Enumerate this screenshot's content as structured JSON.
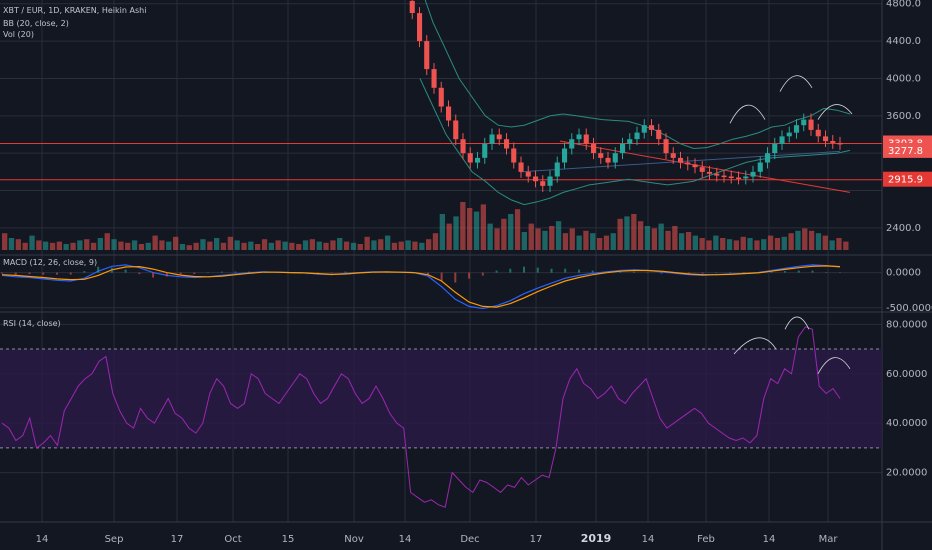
{
  "header": {
    "title": "XBT / EUR, 1D, KRAKEN, Heikin Ashi",
    "bb_label": "BB (20, close, 2)",
    "vol_label": "Vol (20)"
  },
  "macd_panel": {
    "label": "MACD (12, 26, close, 9)"
  },
  "rsi_panel": {
    "label": "RSI (14, close)"
  },
  "colors": {
    "background": "#131722",
    "up": "#26a69a",
    "down": "#ef5350",
    "rsi_line": "#9c27b0",
    "rsi_band": "#2a1a45",
    "bollinger": "#2b8b80",
    "grid": "#2a2e39",
    "price_line": "#e53935"
  },
  "chart_data": [
    {
      "type": "candlestick",
      "title": "XBT / EUR, 1D, KRAKEN, Heikin Ashi",
      "ylim": [
        2110,
        4840
      ],
      "y_ticks": [
        2400.0,
        2800.0,
        3200.0,
        3600.0,
        4000.0,
        4400.0,
        4800.0
      ],
      "y_tick_labels": [
        "2400.0",
        "",
        "",
        "3600.0",
        "4000.0",
        "4400.0",
        "4800.0"
      ],
      "x_ticks": [
        "14",
        "Sep",
        "17",
        "Oct",
        "15",
        "Nov",
        "14",
        "Dec",
        "17",
        "2019",
        "14",
        "Feb",
        "14",
        "Mar"
      ],
      "price_labels": [
        {
          "value": 3303.8,
          "text": "3303.8",
          "color": "#ef5350"
        },
        {
          "value": 3277.8,
          "text": "3277.8",
          "color": "#ef5350"
        },
        {
          "value": 2915.9,
          "text": "2915.9",
          "color": "#e53935"
        }
      ],
      "horizontal_lines": [
        3303.8,
        2915.9
      ],
      "candle_path": [
        4830,
        4700,
        4400,
        4100,
        3900,
        3700,
        3550,
        3350,
        3200,
        3100,
        3150,
        3300,
        3400,
        3350,
        3250,
        3100,
        3000,
        2950,
        2900,
        2850,
        2950,
        3100,
        3250,
        3350,
        3400,
        3300,
        3200,
        3150,
        3100,
        3200,
        3300,
        3350,
        3420,
        3500,
        3450,
        3350,
        3200,
        3150,
        3100,
        3080,
        3050,
        3000,
        2980,
        2960,
        2950,
        2940,
        2930,
        2950,
        3000,
        3100,
        3200,
        3300,
        3380,
        3420,
        3500,
        3560,
        3450,
        3380,
        3330,
        3310,
        3300
      ],
      "bollinger_upper": [
        5000,
        4600,
        4300,
        4000,
        3800,
        3600,
        3500,
        3480,
        3500,
        3550,
        3600,
        3620,
        3600,
        3580,
        3560,
        3550,
        3540,
        3500,
        3450,
        3380,
        3300,
        3250,
        3260,
        3300,
        3350,
        3380,
        3420,
        3480,
        3500,
        3560,
        3600,
        3680,
        3660,
        3620
      ],
      "bollinger_lower": [
        4000,
        3700,
        3400,
        3200,
        3000,
        2900,
        2780,
        2700,
        2650,
        2680,
        2720,
        2780,
        2820,
        2860,
        2880,
        2900,
        2920,
        2900,
        2880,
        2860,
        2880,
        2900,
        2950,
        3000,
        3050,
        3100,
        3130,
        3150,
        3160,
        3170,
        3180,
        3190,
        3200,
        3230
      ],
      "annotation_arcs": [
        {
          "from": 3520,
          "peak": 3760,
          "to": 3560
        },
        {
          "from": 3860,
          "peak": 4050,
          "to": 3900
        },
        {
          "from": 3560,
          "peak": 3720,
          "to": 3620
        }
      ]
    },
    {
      "type": "bar",
      "title": "Vol (20)",
      "values": [
        14,
        10,
        9,
        6,
        12,
        8,
        7,
        6,
        7,
        5,
        6,
        8,
        9,
        6,
        10,
        14,
        9,
        7,
        6,
        8,
        5,
        6,
        12,
        8,
        7,
        11,
        5,
        4,
        6,
        9,
        7,
        10,
        6,
        11,
        8,
        6,
        7,
        5,
        9,
        6,
        8,
        7,
        6,
        5,
        8,
        9,
        7,
        6,
        8,
        10,
        7,
        6,
        5,
        11,
        8,
        9,
        12,
        6,
        7,
        8,
        7,
        6,
        9,
        14,
        30,
        22,
        28,
        40,
        35,
        32,
        38,
        22,
        18,
        26,
        30,
        34,
        15,
        22,
        18,
        16,
        20,
        24,
        14,
        18,
        12,
        16,
        14,
        10,
        12,
        14,
        26,
        28,
        30,
        24,
        20,
        18,
        22,
        16,
        20,
        14,
        15,
        12,
        10,
        8,
        12,
        10,
        9,
        8,
        11,
        10,
        8,
        9,
        12,
        10,
        11,
        14,
        16,
        18,
        16,
        14,
        12,
        8,
        10,
        7
      ]
    },
    {
      "type": "line",
      "title": "MACD (12, 26, close, 9)",
      "ylim": [
        -560,
        250
      ],
      "y_ticks": [
        0.0,
        -500.0
      ],
      "y_tick_labels": [
        "0.0000",
        "-500.0000"
      ],
      "series": [
        {
          "name": "MACD",
          "color": "#2962ff",
          "values": [
            -40,
            -60,
            -70,
            -90,
            -110,
            -120,
            -80,
            20,
            90,
            110,
            70,
            0,
            -40,
            -60,
            -70,
            -60,
            -40,
            -20,
            0,
            10,
            5,
            0,
            -5,
            -20,
            -30,
            -10,
            0,
            10,
            10,
            5,
            0,
            -50,
            -200,
            -380,
            -480,
            -510,
            -470,
            -400,
            -300,
            -220,
            -150,
            -80,
            -40,
            -10,
            10,
            30,
            40,
            30,
            10,
            -10,
            -30,
            -40,
            -30,
            -20,
            -10,
            0,
            30,
            60,
            90,
            110,
            100,
            80
          ]
        },
        {
          "name": "Signal",
          "color": "#ff9800",
          "values": [
            -30,
            -40,
            -55,
            -70,
            -90,
            -100,
            -95,
            -40,
            40,
            80,
            85,
            50,
            0,
            -35,
            -55,
            -60,
            -50,
            -30,
            -10,
            5,
            5,
            0,
            -5,
            -15,
            -25,
            -20,
            -5,
            5,
            8,
            5,
            0,
            -30,
            -120,
            -280,
            -420,
            -480,
            -490,
            -440,
            -360,
            -270,
            -190,
            -120,
            -70,
            -30,
            0,
            20,
            30,
            30,
            20,
            0,
            -20,
            -30,
            -30,
            -25,
            -15,
            -5,
            20,
            45,
            70,
            90,
            95,
            85
          ]
        }
      ]
    },
    {
      "type": "line",
      "title": "RSI (14, close)",
      "ylim": [
        0,
        85
      ],
      "y_ticks": [
        80.0,
        60.0,
        40.0,
        20.0
      ],
      "y_tick_labels": [
        "80.0000",
        "60.0000",
        "40.0000",
        "20.0000"
      ],
      "band": [
        30,
        70
      ],
      "series": [
        {
          "name": "RSI",
          "color": "#9c27b0",
          "values": [
            40,
            38,
            33,
            35,
            42,
            30,
            32,
            35,
            31,
            45,
            50,
            55,
            58,
            60,
            65,
            67,
            52,
            45,
            40,
            38,
            46,
            42,
            40,
            45,
            50,
            44,
            42,
            38,
            36,
            40,
            52,
            58,
            55,
            48,
            46,
            48,
            60,
            58,
            52,
            50,
            48,
            52,
            56,
            60,
            58,
            52,
            48,
            50,
            55,
            60,
            58,
            52,
            48,
            50,
            55,
            50,
            44,
            40,
            38,
            12,
            10,
            8,
            9,
            7,
            6,
            20,
            17,
            14,
            12,
            17,
            16,
            14,
            12,
            15,
            14,
            18,
            15,
            17,
            19,
            18,
            30,
            50,
            58,
            62,
            56,
            54,
            50,
            52,
            55,
            50,
            48,
            52,
            55,
            58,
            50,
            42,
            38,
            40,
            42,
            44,
            46,
            44,
            40,
            38,
            36,
            34,
            33,
            34,
            32,
            35,
            50,
            58,
            56,
            62,
            60,
            75,
            79,
            78,
            55,
            52,
            54,
            50
          ]
        }
      ]
    }
  ],
  "x_axis": {
    "labels": [
      "14",
      "Sep",
      "17",
      "Oct",
      "15",
      "Nov",
      "14",
      "Dec",
      "17",
      "2019",
      "14",
      "Feb",
      "14",
      "Mar"
    ],
    "bold": [
      "2019"
    ]
  }
}
